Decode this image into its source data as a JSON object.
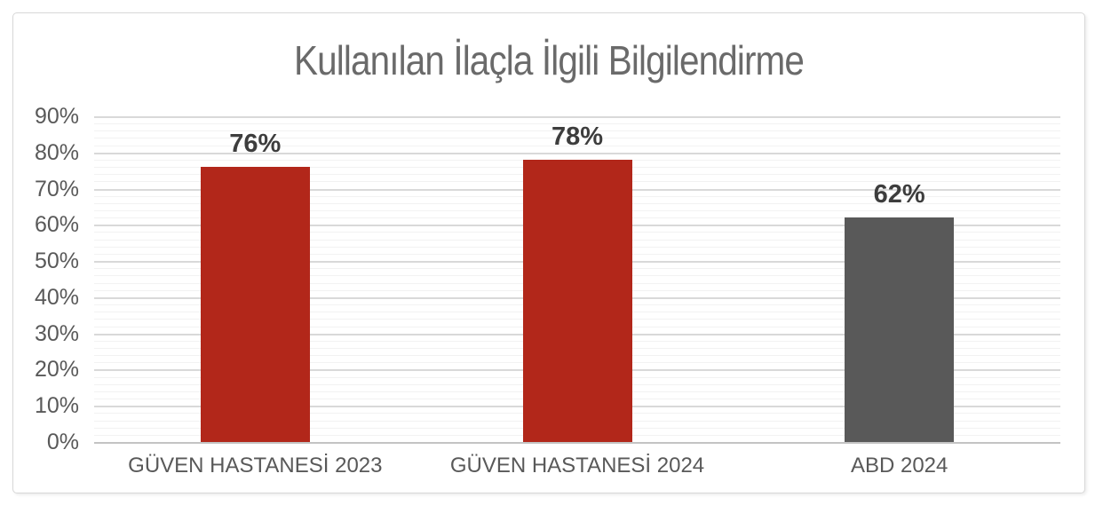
{
  "chart_data": {
    "type": "bar",
    "title": "Kullanılan İlaçla İlgili Bilgilendirme",
    "categories": [
      "GÜVEN HASTANESİ 2023",
      "GÜVEN HASTANESİ 2024",
      "ABD 2024"
    ],
    "values": [
      76,
      78,
      62
    ],
    "value_labels": [
      "76%",
      "78%",
      "62%"
    ],
    "bar_colors": [
      "#b2271a",
      "#b2271a",
      "#595959"
    ],
    "ylim": [
      0,
      90
    ],
    "y_major_step": 10,
    "y_minor_step": 2,
    "y_tick_labels": [
      "0%",
      "10%",
      "20%",
      "30%",
      "40%",
      "50%",
      "60%",
      "70%",
      "80%",
      "90%"
    ],
    "xlabel": "",
    "ylabel": "",
    "grid": "major+minor horizontal",
    "legend": "none",
    "style": {
      "title_color": "#6a6a6a",
      "axis_text_color": "#595959",
      "data_label_color": "#3d3d3d",
      "major_gridline_color": "#d9d9d9",
      "minor_gridline_color": "#f2f2f2",
      "axis_line_color": "#c3c3c3",
      "chart_border_color": "#d7d7d7",
      "background_color": "#ffffff"
    }
  }
}
